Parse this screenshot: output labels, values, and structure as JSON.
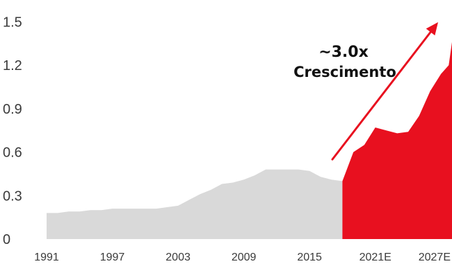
{
  "chart_data": {
    "type": "area",
    "title": "",
    "xlabel": "",
    "ylabel": "",
    "ylim": [
      0,
      1.65
    ],
    "xlim": [
      1991,
      2028
    ],
    "y_ticks": [
      "0",
      "0.3",
      "0.6",
      "0.9",
      "1.2",
      "1.5"
    ],
    "x_ticks": [
      "1991",
      "1997",
      "2003",
      "2009",
      "2015",
      "2021E",
      "2027E"
    ],
    "grid": false,
    "legend": "none",
    "series": [
      {
        "segment": "historical",
        "color": "#d9d9d9",
        "points": [
          [
            1991,
            0.18
          ],
          [
            1992,
            0.18
          ],
          [
            1993,
            0.19
          ],
          [
            1994,
            0.19
          ],
          [
            1995,
            0.2
          ],
          [
            1996,
            0.2
          ],
          [
            1997,
            0.21
          ],
          [
            1998,
            0.21
          ],
          [
            1999,
            0.21
          ],
          [
            2000,
            0.21
          ],
          [
            2001,
            0.21
          ],
          [
            2002,
            0.22
          ],
          [
            2003,
            0.23
          ],
          [
            2004,
            0.27
          ],
          [
            2005,
            0.31
          ],
          [
            2006,
            0.34
          ],
          [
            2007,
            0.38
          ],
          [
            2008,
            0.39
          ],
          [
            2009,
            0.41
          ],
          [
            2010,
            0.44
          ],
          [
            2011,
            0.48
          ],
          [
            2012,
            0.48
          ],
          [
            2013,
            0.48
          ],
          [
            2014,
            0.48
          ],
          [
            2015,
            0.47
          ],
          [
            2016,
            0.43
          ],
          [
            2017,
            0.41
          ],
          [
            2018,
            0.4
          ]
        ]
      },
      {
        "segment": "forecast",
        "color": "#e8101f",
        "points": [
          [
            2018,
            0.4
          ],
          [
            2019,
            0.6
          ],
          [
            2020,
            0.65
          ],
          [
            2021,
            0.77
          ],
          [
            2022,
            0.75
          ],
          [
            2023,
            0.73
          ],
          [
            2024,
            0.74
          ],
          [
            2025,
            0.85
          ],
          [
            2026,
            1.02
          ],
          [
            2027,
            1.14
          ],
          [
            2027.7,
            1.2
          ],
          [
            2028,
            1.36
          ]
        ]
      }
    ],
    "annotation": {
      "lines": [
        "~3.0x",
        "Crescimento"
      ],
      "arrow_color": "#e8101f"
    }
  }
}
